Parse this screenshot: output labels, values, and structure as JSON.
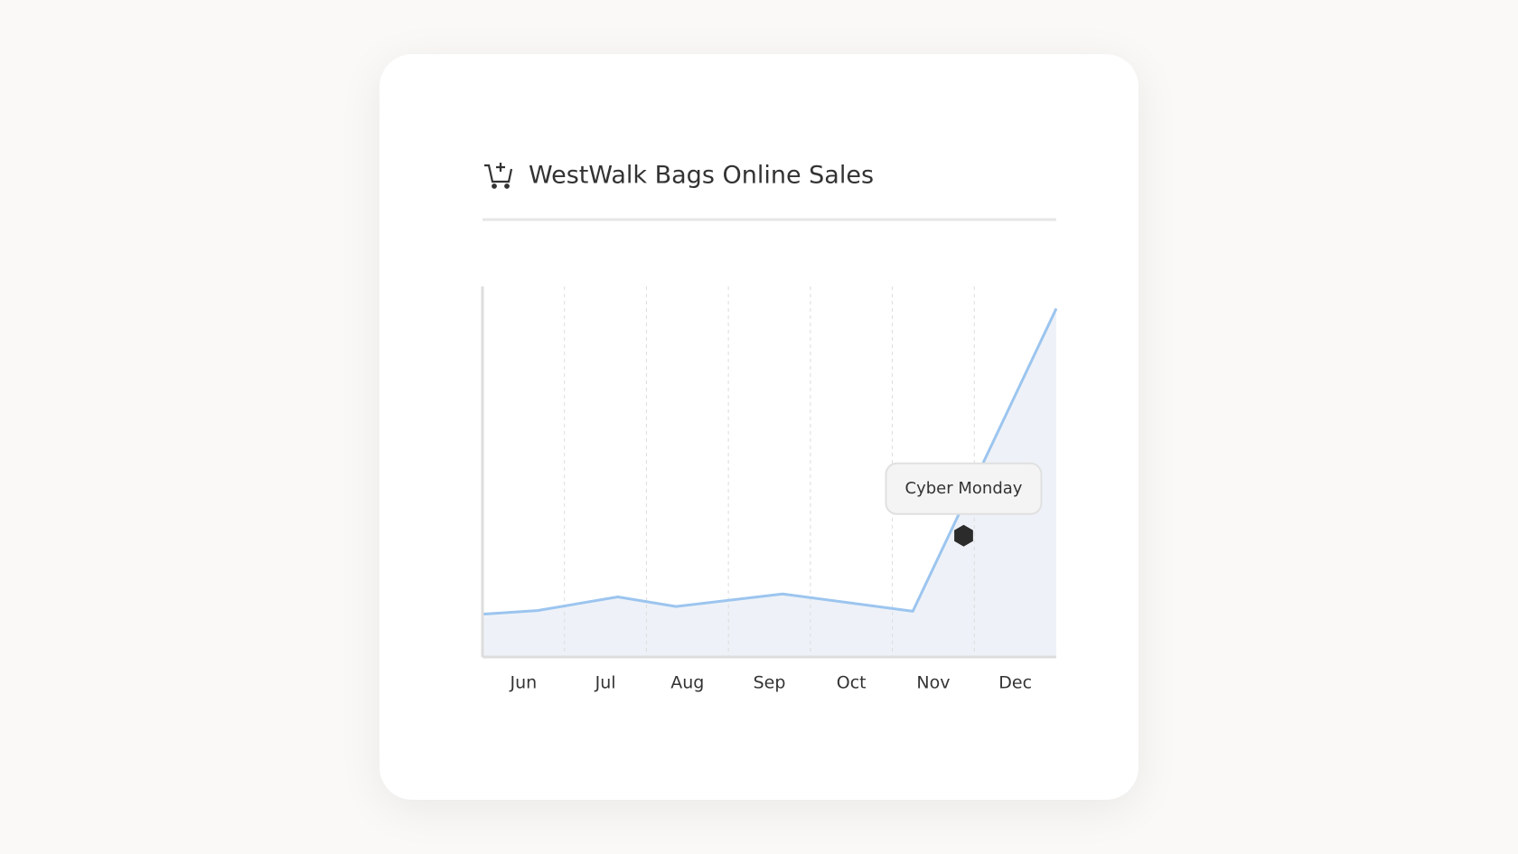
{
  "chart_data": {
    "type": "line",
    "title": "WestWalk Bags Online Sales",
    "xlim": [
      0,
      7
    ],
    "ylim": [
      0,
      100
    ],
    "xticks": [
      {
        "value": 0.5,
        "label": "Jun"
      },
      {
        "value": 1.5,
        "label": "Jul"
      },
      {
        "value": 2.5,
        "label": "Aug"
      },
      {
        "value": 3.5,
        "label": "Sep"
      },
      {
        "value": 4.5,
        "label": "Oct"
      },
      {
        "value": 5.5,
        "label": "Nov"
      },
      {
        "value": 6.5,
        "label": "Dec"
      }
    ],
    "grid": true,
    "series": [
      {
        "color": "#9cc5ef",
        "x": [
          0,
          0.67,
          1.65,
          2.36,
          3.66,
          5.25,
          7.0
        ],
        "values": [
          11.6,
          12.6,
          16.3,
          13.7,
          17.1,
          12.4,
          94.5
        ]
      }
    ],
    "annotation": {
      "text": "Cyber Monday",
      "x": 5.87,
      "y": 32.9
    }
  }
}
